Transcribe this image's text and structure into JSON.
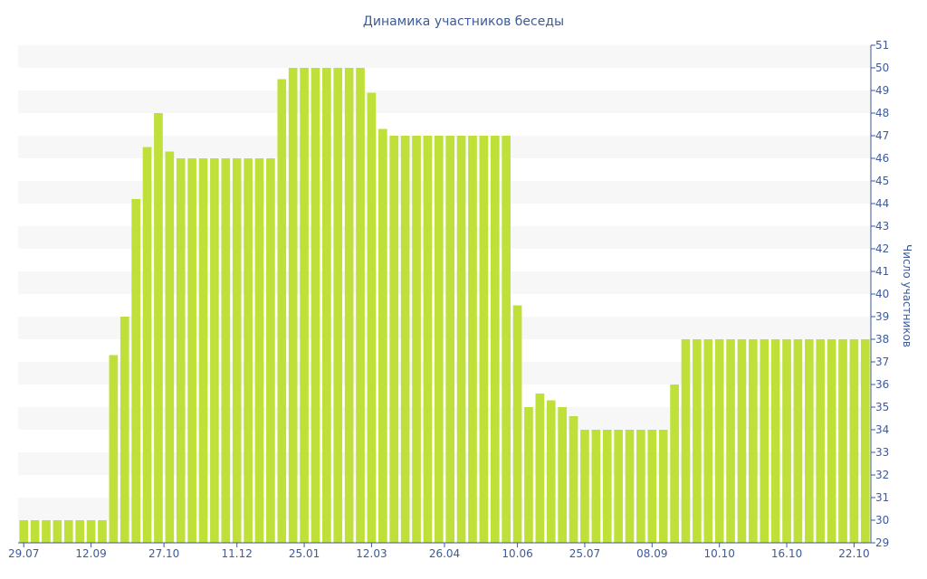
{
  "chart_data": {
    "type": "bar",
    "title": "Динамика участников беседы",
    "xlabel": "",
    "ylabel": "Число участников",
    "ylim": [
      29,
      51
    ],
    "y_ticks": [
      29,
      30,
      31,
      32,
      33,
      34,
      35,
      36,
      37,
      38,
      39,
      40,
      41,
      42,
      43,
      44,
      45,
      46,
      47,
      48,
      49,
      50,
      51
    ],
    "x_tick_labels": [
      {
        "index": 0,
        "label": "29.07"
      },
      {
        "index": 6,
        "label": "12.09"
      },
      {
        "index": 12.5,
        "label": "27.10"
      },
      {
        "index": 19,
        "label": "11.12"
      },
      {
        "index": 25,
        "label": "25.01"
      },
      {
        "index": 31,
        "label": "12.03"
      },
      {
        "index": 37.5,
        "label": "26.04"
      },
      {
        "index": 44,
        "label": "10.06"
      },
      {
        "index": 50,
        "label": "25.07"
      },
      {
        "index": 56,
        "label": "08.09"
      },
      {
        "index": 62,
        "label": "10.10"
      },
      {
        "index": 68,
        "label": "16.10"
      },
      {
        "index": 74,
        "label": "22.10"
      }
    ],
    "values": [
      30,
      30,
      30,
      30,
      30,
      30,
      30,
      30,
      37.3,
      39,
      44.2,
      46.5,
      48,
      46.3,
      46,
      46,
      46,
      46,
      46,
      46,
      46,
      46,
      46,
      49.5,
      50,
      50,
      50,
      50,
      50,
      50,
      50,
      48.9,
      47.3,
      47,
      47,
      47,
      47,
      47,
      47,
      47,
      47,
      47,
      47,
      47,
      39.5,
      35,
      35.6,
      35.3,
      35,
      34.6,
      34,
      34,
      34,
      34,
      34,
      34,
      34,
      34,
      36,
      38,
      38,
      38,
      38,
      38,
      38,
      38,
      38,
      38,
      38,
      38,
      38,
      38,
      38,
      38,
      38,
      38
    ],
    "bar_color": "#bfe039",
    "band_color": "#f7f7f7",
    "text_color": "#3d5a99",
    "axis_color": "#3d5a99",
    "grid": "alternating horizontal bands",
    "y_axis_position": "right"
  }
}
